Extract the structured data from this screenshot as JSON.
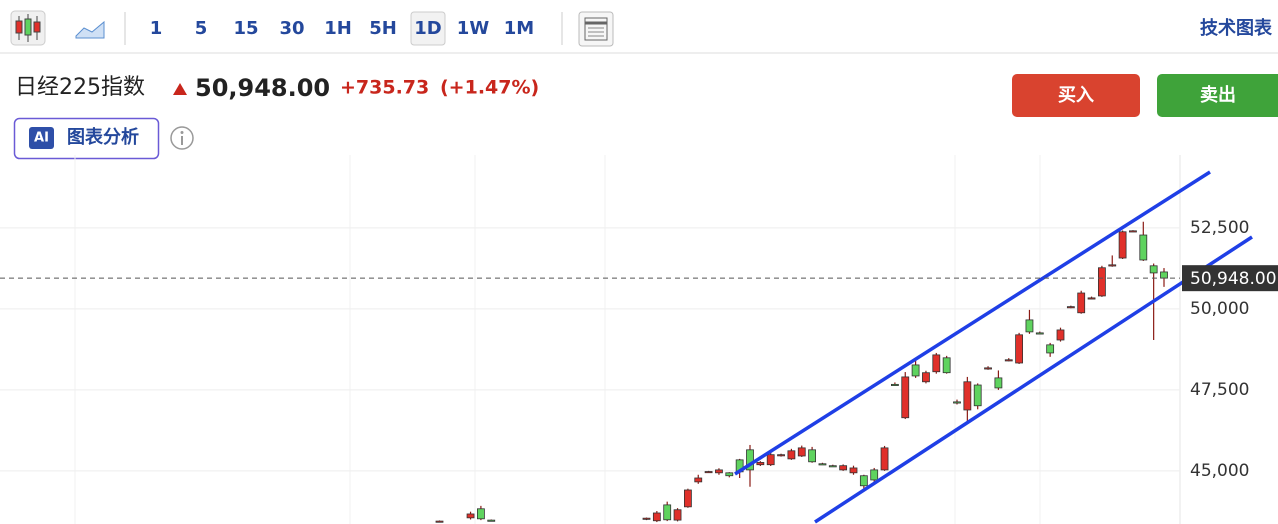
{
  "toolbar": {
    "intervals": [
      "1",
      "5",
      "15",
      "30",
      "1H",
      "5H",
      "1D",
      "1W",
      "1M"
    ],
    "selected_index": 6,
    "right_link": "技术图表"
  },
  "header": {
    "name": "日经225指数",
    "price": "50,948.00",
    "change": "+735.73",
    "change_pct": "(+1.47%)",
    "buy": "买入",
    "sell": "卖出",
    "ai_badge": "AI",
    "ai_label": "图表分析"
  },
  "chart_data": {
    "type": "candlestick",
    "open": [
      43440,
      null,
      null,
      43550,
      43830,
      43480,
      null,
      null,
      null,
      null,
      null,
      null,
      null,
      null,
      null,
      null,
      null,
      null,
      null,
      null,
      43520,
      43460,
      43950,
      43480,
      43890,
      44660,
      44970,
      44940,
      44940,
      45340,
      45650,
      45190,
      45190,
      45480,
      45370,
      45460,
      45650,
      45220,
      45160,
      45030,
      44940,
      44850,
      45030,
      45030,
      47670,
      46640,
      48270,
      47750,
      48060,
      48490,
      47130,
      46880,
      47650,
      48170,
      47870,
      48420,
      48330,
      49660,
      49260,
      48890,
      49040,
      50060,
      49880,
      50330,
      50400,
      51350,
      51570,
      52400,
      52280,
      51330,
      51140
    ],
    "high": [
      43470,
      null,
      null,
      43740,
      43920,
      43500,
      null,
      null,
      null,
      null,
      null,
      null,
      null,
      null,
      null,
      null,
      null,
      null,
      null,
      null,
      43560,
      43760,
      44050,
      43850,
      44450,
      44880,
      45000,
      45080,
      44960,
      45370,
      45800,
      45300,
      45560,
      45530,
      45680,
      45780,
      45740,
      45250,
      45190,
      45200,
      45160,
      44880,
      45090,
      45770,
      47730,
      48050,
      48420,
      48090,
      48640,
      48550,
      47200,
      47900,
      47700,
      48230,
      48100,
      48480,
      49260,
      49970,
      49300,
      48950,
      49420,
      50100,
      50560,
      50380,
      51330,
      51650,
      52420,
      52430,
      52690,
      51400,
      51260
    ],
    "low": [
      43420,
      null,
      null,
      43500,
      43480,
      43440,
      null,
      null,
      null,
      null,
      null,
      null,
      null,
      null,
      null,
      null,
      null,
      null,
      null,
      null,
      43480,
      43420,
      43450,
      43440,
      43860,
      44600,
      44950,
      44880,
      44800,
      44780,
      44510,
      45150,
      45150,
      45440,
      45340,
      45430,
      45250,
      45190,
      45130,
      45000,
      44880,
      44360,
      44660,
      45000,
      47630,
      46600,
      47870,
      47700,
      48000,
      48000,
      47050,
      46480,
      46900,
      48120,
      47500,
      48380,
      48300,
      49230,
      49220,
      48520,
      48990,
      50020,
      49850,
      50300,
      50370,
      51300,
      51540,
      52380,
      51480,
      49040,
      50680
    ],
    "close": [
      43450,
      null,
      null,
      43670,
      43520,
      43470,
      null,
      null,
      null,
      null,
      null,
      null,
      null,
      null,
      null,
      null,
      null,
      null,
      null,
      null,
      43540,
      43700,
      43490,
      43800,
      44410,
      44780,
      44980,
      45030,
      44850,
      44970,
      45030,
      45260,
      45500,
      45500,
      45620,
      45710,
      45280,
      45210,
      45150,
      45160,
      45090,
      44540,
      44720,
      45710,
      47650,
      47900,
      47930,
      48030,
      48580,
      48030,
      47100,
      47750,
      47010,
      48180,
      47560,
      48430,
      49200,
      49290,
      49250,
      48640,
      49350,
      50070,
      50490,
      50340,
      51270,
      51360,
      52380,
      52410,
      51510,
      51110,
      50950
    ],
    "ylim": [
      43360,
      54750
    ],
    "yticks": [
      {
        "value": 45000,
        "label": "45,000"
      },
      {
        "value": 47500,
        "label": "47,500"
      },
      {
        "value": 50000,
        "label": "50,000"
      },
      {
        "value": 52500,
        "label": "52,500"
      }
    ],
    "grid": true,
    "up_color": "#e0302a",
    "down_color": "#5fd35f",
    "last_price": {
      "value": 50948,
      "label": "50,948.00"
    }
  }
}
